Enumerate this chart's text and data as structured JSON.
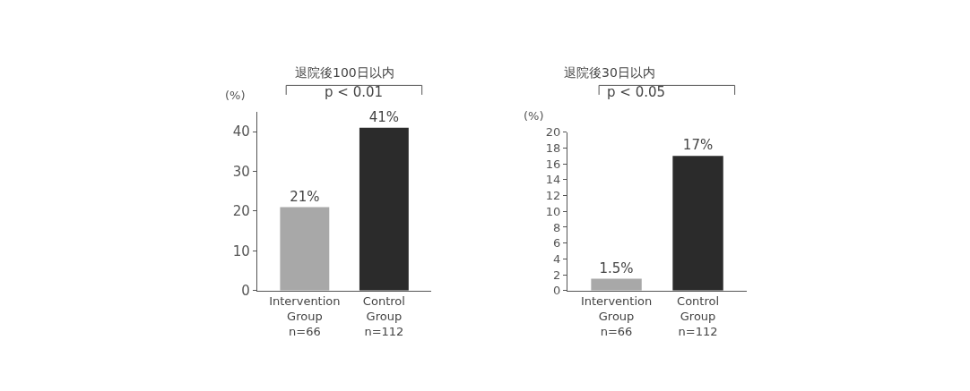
{
  "chart_data": [
    {
      "type": "bar",
      "title": "退院後100日以内",
      "ylabel": "(%)",
      "categories": [
        "Intervention\nGroup\nn=66",
        "Control\nGroup\nn=112"
      ],
      "values": [
        21,
        41
      ],
      "colors": [
        "#a8a8a8",
        "#2b2b2b"
      ],
      "value_labels": [
        "21%",
        "41%"
      ],
      "ylim": [
        0,
        45
      ],
      "yticks": [
        0,
        10,
        20,
        30,
        40
      ],
      "annotations": [
        "p < 0.01"
      ]
    },
    {
      "type": "bar",
      "title": "退院後30日以内",
      "ylabel": "(%)",
      "categories": [
        "Intervention\nGroup\nn=66",
        "Control\nGroup\nn=112"
      ],
      "values": [
        1.5,
        17
      ],
      "colors": [
        "#a8a8a8",
        "#2b2b2b"
      ],
      "value_labels": [
        "1.5%",
        "17%"
      ],
      "ylim": [
        0,
        20
      ],
      "yticks": [
        0,
        2,
        4,
        6,
        8,
        10,
        12,
        14,
        16,
        18,
        20
      ],
      "annotations": [
        "p < 0.05"
      ]
    }
  ]
}
